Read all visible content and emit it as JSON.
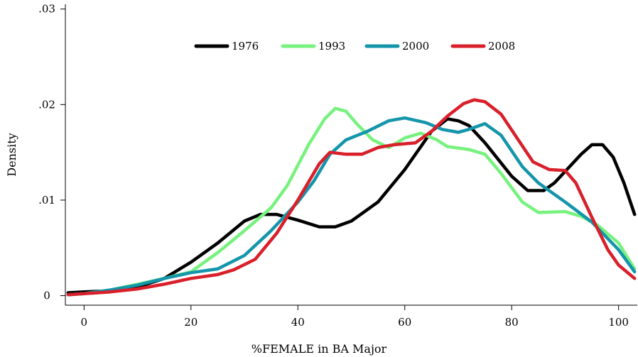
{
  "chart_data": {
    "type": "line",
    "title": "",
    "xlabel": "%FEMALE in BA Major",
    "ylabel": "Density",
    "xlim": [
      -3.5,
      103.5
    ],
    "ylim": [
      -0.001,
      0.0305
    ],
    "x_ticks": [
      0,
      20,
      40,
      60,
      80,
      100
    ],
    "x_tick_labels": [
      "0",
      "20",
      "40",
      "60",
      "80",
      "100"
    ],
    "y_ticks": [
      0,
      0.01,
      0.02,
      0.03
    ],
    "y_tick_labels": [
      "0",
      ".01",
      ".02",
      ".03"
    ],
    "grid": false,
    "legend_position": "top-center",
    "series": [
      {
        "name": "1976",
        "color": "#000000",
        "x": [
          -3,
          0,
          5,
          10,
          15,
          20,
          25,
          30,
          33,
          36,
          40,
          44,
          47,
          50,
          55,
          60,
          65,
          68,
          70,
          72,
          75,
          80,
          83,
          86,
          88,
          90,
          93,
          95,
          97,
          99,
          101,
          103
        ],
        "y": [
          0.0003,
          0.0004,
          0.0005,
          0.0009,
          0.0018,
          0.0035,
          0.0055,
          0.0078,
          0.0085,
          0.0085,
          0.0079,
          0.0072,
          0.0072,
          0.0078,
          0.0098,
          0.0132,
          0.0172,
          0.0185,
          0.0183,
          0.0178,
          0.016,
          0.0125,
          0.011,
          0.011,
          0.0118,
          0.013,
          0.0148,
          0.0158,
          0.0158,
          0.0145,
          0.0118,
          0.0085
        ]
      },
      {
        "name": "1993",
        "color": "#77f27e",
        "x": [
          -3,
          0,
          5,
          10,
          15,
          20,
          25,
          30,
          35,
          38,
          42,
          45,
          47,
          49,
          51,
          54,
          57,
          60,
          63,
          66,
          68,
          72,
          75,
          78,
          82,
          85,
          90,
          93,
          96,
          100,
          103
        ],
        "y": [
          0.0001,
          0.0002,
          0.0006,
          0.0012,
          0.0018,
          0.0025,
          0.0045,
          0.0068,
          0.0092,
          0.0115,
          0.0158,
          0.0185,
          0.0196,
          0.0193,
          0.018,
          0.0163,
          0.0155,
          0.0165,
          0.017,
          0.0163,
          0.0156,
          0.0153,
          0.0148,
          0.0128,
          0.0098,
          0.0087,
          0.0088,
          0.0083,
          0.0074,
          0.0055,
          0.0028
        ]
      },
      {
        "name": "2000",
        "color": "#1495aa",
        "x": [
          -3,
          0,
          5,
          10,
          15,
          20,
          25,
          30,
          35,
          40,
          43,
          46,
          49,
          53,
          57,
          60,
          64,
          67,
          70,
          72,
          75,
          78,
          82,
          85,
          90,
          95,
          100,
          103
        ],
        "y": [
          0.0001,
          0.0002,
          0.0006,
          0.0011,
          0.0018,
          0.0024,
          0.0028,
          0.0042,
          0.0068,
          0.0098,
          0.012,
          0.0148,
          0.0163,
          0.0172,
          0.0183,
          0.0186,
          0.0181,
          0.0174,
          0.0171,
          0.0174,
          0.018,
          0.0168,
          0.0135,
          0.0118,
          0.0098,
          0.0077,
          0.0048,
          0.0025
        ]
      },
      {
        "name": "2008",
        "color": "#d91f2a",
        "x": [
          -3,
          0,
          5,
          10,
          15,
          20,
          25,
          28,
          32,
          36,
          40,
          44,
          46,
          49,
          52,
          55,
          58,
          62,
          65,
          68,
          71,
          73,
          75,
          78,
          81,
          84,
          87,
          90,
          92,
          95,
          98,
          100,
          103
        ],
        "y": [
          0.0001,
          0.0002,
          0.0004,
          0.0007,
          0.0012,
          0.0018,
          0.0022,
          0.0027,
          0.0038,
          0.0065,
          0.01,
          0.0138,
          0.015,
          0.0148,
          0.0148,
          0.0155,
          0.0158,
          0.016,
          0.0172,
          0.0188,
          0.0201,
          0.0205,
          0.0203,
          0.019,
          0.0165,
          0.014,
          0.0132,
          0.0131,
          0.0118,
          0.0082,
          0.0048,
          0.0032,
          0.0018
        ]
      }
    ]
  }
}
